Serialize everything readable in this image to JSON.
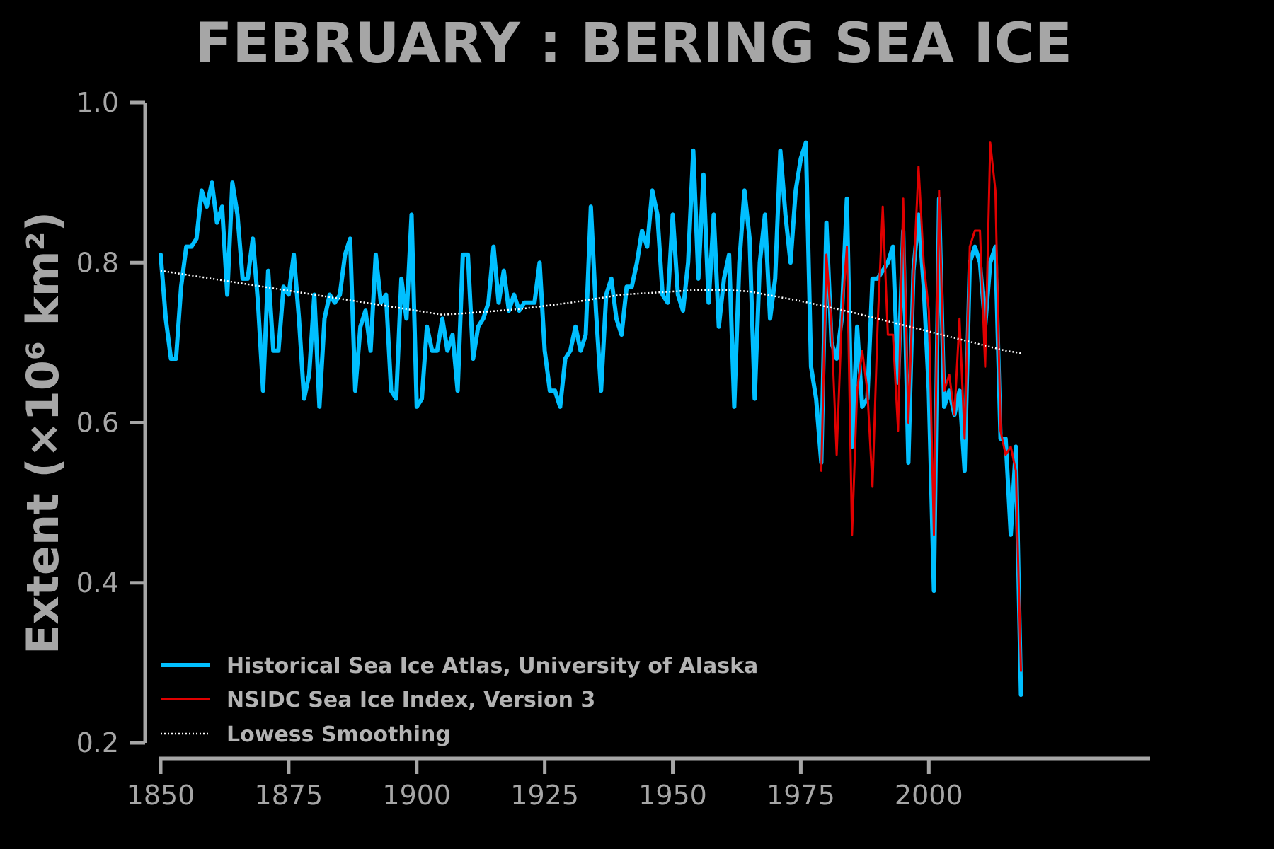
{
  "chart_data": {
    "type": "line",
    "title": "FEBRUARY : BERING SEA ICE",
    "ylabel": "Extent (×10⁶ km²)",
    "xlabel": "",
    "xlim": [
      1850,
      2018
    ],
    "ylim": [
      0.2,
      1.0
    ],
    "x_ticks": [
      "1850",
      "1875",
      "1900",
      "1925",
      "1950",
      "1975",
      "2000"
    ],
    "y_ticks": [
      "0.2",
      "0.4",
      "0.6",
      "0.8",
      "1.0"
    ],
    "legend_position": "lower-left",
    "grid": false,
    "series": [
      {
        "name": "Historical Sea Ice Atlas, University of Alaska",
        "color": "#00bfff",
        "x_start": 1850,
        "values": [
          0.81,
          0.73,
          0.68,
          0.68,
          0.77,
          0.82,
          0.82,
          0.83,
          0.89,
          0.87,
          0.9,
          0.85,
          0.87,
          0.76,
          0.9,
          0.86,
          0.78,
          0.78,
          0.83,
          0.75,
          0.64,
          0.79,
          0.69,
          0.69,
          0.77,
          0.76,
          0.81,
          0.73,
          0.63,
          0.66,
          0.76,
          0.62,
          0.73,
          0.76,
          0.75,
          0.76,
          0.81,
          0.83,
          0.64,
          0.72,
          0.74,
          0.69,
          0.81,
          0.75,
          0.76,
          0.64,
          0.63,
          0.78,
          0.73,
          0.86,
          0.62,
          0.63,
          0.72,
          0.69,
          0.69,
          0.73,
          0.69,
          0.71,
          0.64,
          0.81,
          0.81,
          0.68,
          0.72,
          0.73,
          0.75,
          0.82,
          0.75,
          0.79,
          0.74,
          0.76,
          0.74,
          0.75,
          0.75,
          0.75,
          0.8,
          0.69,
          0.64,
          0.64,
          0.62,
          0.68,
          0.69,
          0.72,
          0.69,
          0.71,
          0.87,
          0.74,
          0.64,
          0.76,
          0.78,
          0.73,
          0.71,
          0.77,
          0.77,
          0.8,
          0.84,
          0.82,
          0.89,
          0.86,
          0.76,
          0.75,
          0.86,
          0.76,
          0.74,
          0.8,
          0.94,
          0.78,
          0.91,
          0.75,
          0.86,
          0.72,
          0.78,
          0.81,
          0.62,
          0.8,
          0.89,
          0.83,
          0.63,
          0.8,
          0.86,
          0.73,
          0.78,
          0.94,
          0.86,
          0.8,
          0.89,
          0.93,
          0.95,
          0.67,
          0.63,
          0.55,
          0.85,
          0.7,
          0.68,
          0.73,
          0.88,
          0.57,
          0.72,
          0.62,
          0.63,
          0.78,
          0.78,
          0.79,
          0.8,
          0.82,
          0.65,
          0.84,
          0.55,
          0.79,
          0.86,
          0.77,
          0.64,
          0.39,
          0.88,
          0.62,
          0.64,
          0.61,
          0.64,
          0.54,
          0.8,
          0.82,
          0.8,
          0.72,
          0.8,
          0.82,
          0.58,
          0.58,
          0.46,
          0.57,
          0.26
        ]
      },
      {
        "name": "NSIDC Sea Ice Index, Version 3",
        "color": "#e00000",
        "x_start": 1979,
        "values": [
          0.54,
          0.81,
          0.72,
          0.56,
          0.73,
          0.82,
          0.46,
          0.64,
          0.69,
          0.64,
          0.52,
          0.72,
          0.87,
          0.71,
          0.71,
          0.59,
          0.88,
          0.6,
          0.78,
          0.92,
          0.8,
          0.74,
          0.46,
          0.89,
          0.64,
          0.66,
          0.61,
          0.73,
          0.58,
          0.82,
          0.84,
          0.84,
          0.67,
          0.95,
          0.89,
          0.59,
          0.56,
          0.57,
          0.54,
          0.29
        ]
      },
      {
        "name": "Lowess Smoothing",
        "color": "#ffffff",
        "style": "dotted",
        "x": [
          1850,
          1860,
          1870,
          1880,
          1890,
          1900,
          1905,
          1910,
          1920,
          1930,
          1940,
          1950,
          1955,
          1960,
          1965,
          1970,
          1975,
          1980,
          1985,
          1990,
          1995,
          2000,
          2005,
          2010,
          2015,
          2018
        ],
        "values": [
          0.79,
          0.78,
          0.77,
          0.76,
          0.75,
          0.74,
          0.735,
          0.737,
          0.742,
          0.75,
          0.76,
          0.764,
          0.766,
          0.766,
          0.764,
          0.758,
          0.752,
          0.745,
          0.738,
          0.73,
          0.722,
          0.714,
          0.706,
          0.698,
          0.69,
          0.687
        ]
      }
    ]
  }
}
